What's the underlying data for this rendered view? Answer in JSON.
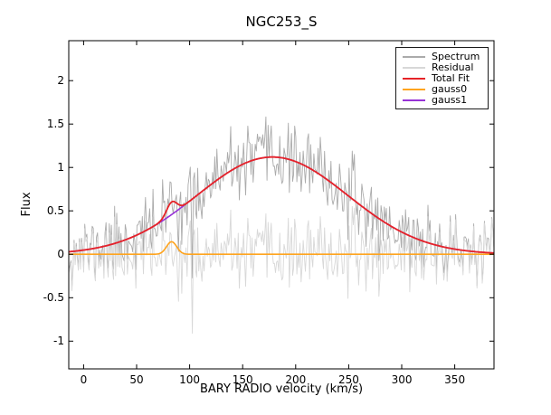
{
  "chart_data": {
    "type": "line",
    "title": "NGC253_S",
    "xlabel": "BARY RADIO velocity (km/s)",
    "ylabel": "Flux",
    "xlim": [
      -14,
      387
    ],
    "ylim": [
      -1.32,
      2.46
    ],
    "xticks": [
      0,
      50,
      100,
      150,
      200,
      250,
      300,
      350
    ],
    "xtick_labels": [
      "0",
      "50",
      "100",
      "150",
      "200",
      "250",
      "300",
      "350"
    ],
    "yticks": [
      2,
      1.5,
      1,
      0.5,
      0,
      -0.5,
      -1
    ],
    "ytick_labels": [
      "2",
      "1.5",
      "1",
      "0.5",
      "0",
      "-0.5",
      "-1"
    ],
    "grid": false,
    "legend_position": "top-right",
    "legend": [
      {
        "label": "Spectrum",
        "color": "#ababab"
      },
      {
        "label": "Residual",
        "color": "#d8d8d8"
      },
      {
        "label": "Total Fit",
        "color": "#e62328"
      },
      {
        "label": "gauss0",
        "color": "#ffa41e"
      },
      {
        "label": "gauss1",
        "color": "#9733d6"
      }
    ],
    "series": {
      "spectrum": {
        "color": "#ababab",
        "description": "observed spectrum = total fit + noise"
      },
      "residual": {
        "color": "#d8d8d8",
        "description": "spectrum minus total fit, scattered about 0"
      },
      "total_fit": {
        "color": "#e62328",
        "description": "gauss0 + gauss1"
      },
      "gauss0": {
        "color": "#ffa41e",
        "description": "narrow Gaussian component on zero baseline"
      },
      "gauss1": {
        "color": "#9733d6",
        "description": "broad Gaussian component"
      }
    },
    "model": {
      "gauss0": {
        "center": 83,
        "amplitude": 0.145,
        "sigma": 4.8,
        "peak_flux": 0.145
      },
      "gauss1": {
        "center": 178,
        "amplitude": 1.12,
        "sigma": 71,
        "peak_flux": 1.12
      },
      "total_fit_peak": {
        "x": 178,
        "y": 1.13
      },
      "bump_on_total_fit": {
        "x": 83,
        "y": 0.6
      }
    },
    "noise": {
      "sigma": 0.19,
      "seed": 11,
      "n_points": 400,
      "deep_spike": {
        "x": 103,
        "y": -0.91
      }
    },
    "frame_color": "#000000",
    "background_color": "#ffffff"
  }
}
